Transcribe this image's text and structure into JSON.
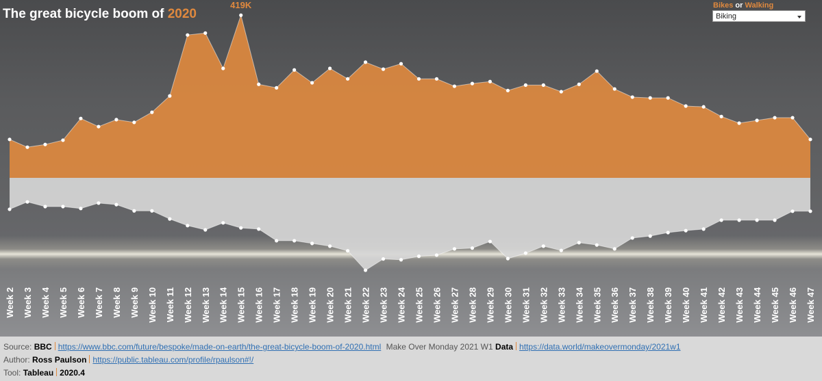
{
  "chart_data": {
    "type": "mirrored-area",
    "title": "The great bicycle boom of ",
    "title_highlight": "2020",
    "categories": [
      "Week 2",
      "Week 3",
      "Week 4",
      "Week 5",
      "Week 6",
      "Week 7",
      "Week 8",
      "Week 9",
      "Week 10",
      "Week 11",
      "Week 12",
      "Week 13",
      "Week 14",
      "Week 15",
      "Week 16",
      "Week 17",
      "Week 18",
      "Week 19",
      "Week 20",
      "Week 21",
      "Week 22",
      "Week 23",
      "Week 24",
      "Week 25",
      "Week 26",
      "Week 27",
      "Week 28",
      "Week 29",
      "Week 30",
      "Week 31",
      "Week 32",
      "Week 33",
      "Week 34",
      "Week 35",
      "Week 36",
      "Week 37",
      "Week 38",
      "Week 39",
      "Week 40",
      "Week 41",
      "Week 42",
      "Week 43",
      "Week 44",
      "Week 45",
      "Week 46",
      "Week 47"
    ],
    "series": [
      {
        "name": "Bikes",
        "color": "#e0893e",
        "values": [
          99000,
          79000,
          86000,
          97000,
          153000,
          132000,
          150000,
          143000,
          169000,
          211000,
          368000,
          373000,
          282000,
          419000,
          241000,
          232000,
          278000,
          245000,
          282000,
          255000,
          298000,
          280000,
          294000,
          255000,
          255000,
          236000,
          243000,
          248000,
          225000,
          239000,
          239000,
          222000,
          241000,
          275000,
          229000,
          208000,
          206000,
          206000,
          185000,
          183000,
          158000,
          141000,
          148000,
          155000,
          155000,
          99000
        ],
        "value_labels": [
          null,
          null,
          null,
          null,
          null,
          null,
          null,
          null,
          null,
          null,
          null,
          null,
          null,
          "419K",
          null,
          null,
          null,
          null,
          null,
          null,
          null,
          null,
          null,
          null,
          null,
          null,
          null,
          null,
          null,
          null,
          null,
          null,
          null,
          null,
          null,
          null,
          null,
          null,
          null,
          null,
          null,
          null,
          null,
          null,
          null,
          null
        ]
      },
      {
        "name": "Walking",
        "color": "#d6d6d6",
        "axis": "y2",
        "values": [
          81000,
          62000,
          74000,
          74000,
          79000,
          65000,
          69000,
          85000,
          85000,
          106000,
          123000,
          134000,
          116000,
          129000,
          132000,
          162000,
          162000,
          169000,
          176000,
          188000,
          238000,
          209000,
          211000,
          202000,
          199000,
          183000,
          181000,
          164000,
          208000,
          194000,
          176000,
          187000,
          167000,
          173000,
          183000,
          155000,
          150000,
          141000,
          136000,
          132000,
          109000,
          109000,
          109000,
          109000,
          86000,
          86000
        ]
      }
    ],
    "legend_joiner": " or ",
    "selector_value": "Biking",
    "ylim": [
      0,
      430000
    ],
    "y2lim": [
      0,
      430000
    ],
    "y2_inverted": true
  },
  "footer": {
    "source_label": "Source:",
    "source": "BBC",
    "source_url": "https://www.bbc.com/future/bespoke/made-on-earth/the-great-bicycle-boom-of-2020.html",
    "data_note": "Make Over Monday 2021 W1",
    "data_label": "Data",
    "data_url": "https://data.world/makeovermonday/2021w1",
    "author_label": "Author:",
    "author": "Ross Paulson",
    "author_url": "https://public.tableau.com/profile/rpaulson#!/",
    "tool_label": "Tool:",
    "tool": "Tableau",
    "tool_version": "2020.4"
  }
}
